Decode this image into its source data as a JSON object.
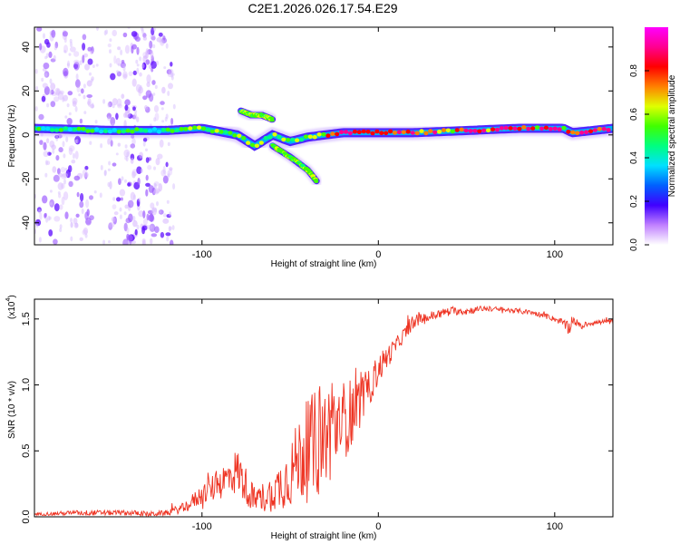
{
  "title": "C2E1.2026.026.17.54.E29",
  "chart_data": [
    {
      "type": "heatmap",
      "name": "spectrogram",
      "xlabel": "Height of straight line (km)",
      "ylabel": "Frequency (Hz)",
      "xlim": [
        -195,
        133
      ],
      "ylim": [
        -50,
        49
      ],
      "xticks": [
        -100,
        0,
        100
      ],
      "yticks": [
        -40,
        -20,
        0,
        20,
        40
      ],
      "colorbar": {
        "label": "Normalized spectral amplitude",
        "range": [
          0,
          1
        ],
        "ticks": [
          "0.0",
          "0.2",
          "0.4",
          "0.6",
          "0.8"
        ],
        "colors": [
          "#ffffff",
          "#c080ff",
          "#4000ff",
          "#0060ff",
          "#00e0ff",
          "#00ff80",
          "#40ff00",
          "#e0ff00",
          "#ff8000",
          "#ff0000",
          "#ff0090",
          "#ff00ff"
        ]
      },
      "features": [
        {
          "label": "main-band",
          "x": [
            -195,
            -150,
            -120,
            -100,
            -80,
            -70,
            -60,
            -50,
            -40,
            -30,
            -20,
            0,
            20,
            50,
            80,
            105,
            110,
            133
          ],
          "y": [
            3,
            2,
            2,
            3,
            0,
            -5,
            0,
            -3,
            -1,
            0,
            1,
            1,
            1,
            2,
            3,
            3,
            1,
            3
          ]
        },
        {
          "label": "upper-branch",
          "x": [
            -78,
            -72,
            -66,
            -60
          ],
          "y": [
            11,
            9,
            9,
            7
          ]
        },
        {
          "label": "lower-branch",
          "x": [
            -60,
            -50,
            -40,
            -35
          ],
          "y": [
            -5,
            -10,
            -16,
            -21
          ]
        },
        {
          "label": "scatter-columns",
          "x": [
            -185,
            -170,
            -145,
            -135,
            -125
          ],
          "y_range": [
            -50,
            49
          ]
        }
      ]
    },
    {
      "type": "line",
      "name": "snr",
      "xlabel": "Height of straight line (km)",
      "ylabel": "SNR (10 * v/v)",
      "multiplier": "(x10",
      "multiplier_exp": "4",
      "xlim": [
        -195,
        133
      ],
      "ylim": [
        0,
        1.65
      ],
      "xticks": [
        -100,
        0,
        100
      ],
      "yticks": [
        0,
        0.5,
        1.0,
        1.5
      ],
      "ytick_labels": [
        "0.0",
        "0.5",
        "1.0",
        "1.5"
      ],
      "color": "#ee3322",
      "series": [
        {
          "name": "SNR",
          "x": [
            -195,
            -170,
            -150,
            -140,
            -130,
            -120,
            -110,
            -100,
            -90,
            -80,
            -70,
            -60,
            -50,
            -45,
            -40,
            -35,
            -30,
            -25,
            -20,
            -15,
            -10,
            -5,
            0,
            10,
            20,
            30,
            40,
            50,
            60,
            70,
            80,
            90,
            100,
            105,
            108,
            110,
            115,
            120,
            133
          ],
          "y": [
            0.02,
            0.03,
            0.03,
            0.03,
            0.02,
            0.03,
            0.07,
            0.17,
            0.25,
            0.35,
            0.12,
            0.18,
            0.32,
            0.45,
            0.5,
            0.55,
            0.62,
            0.68,
            0.72,
            0.8,
            0.88,
            0.98,
            1.12,
            1.3,
            1.48,
            1.52,
            1.56,
            1.56,
            1.58,
            1.57,
            1.56,
            1.54,
            1.5,
            1.47,
            1.42,
            1.5,
            1.44,
            1.47,
            1.48
          ],
          "noise": [
            0.01,
            0.02,
            0.02,
            0.02,
            0.02,
            0.02,
            0.04,
            0.08,
            0.12,
            0.18,
            0.1,
            0.14,
            0.25,
            0.32,
            0.4,
            0.42,
            0.4,
            0.38,
            0.32,
            0.25,
            0.2,
            0.14,
            0.12,
            0.06,
            0.05,
            0.04,
            0.03,
            0.03,
            0.02,
            0.02,
            0.02,
            0.02,
            0.02,
            0.03,
            0.05,
            0.04,
            0.02,
            0.02,
            0.02
          ]
        }
      ]
    }
  ]
}
